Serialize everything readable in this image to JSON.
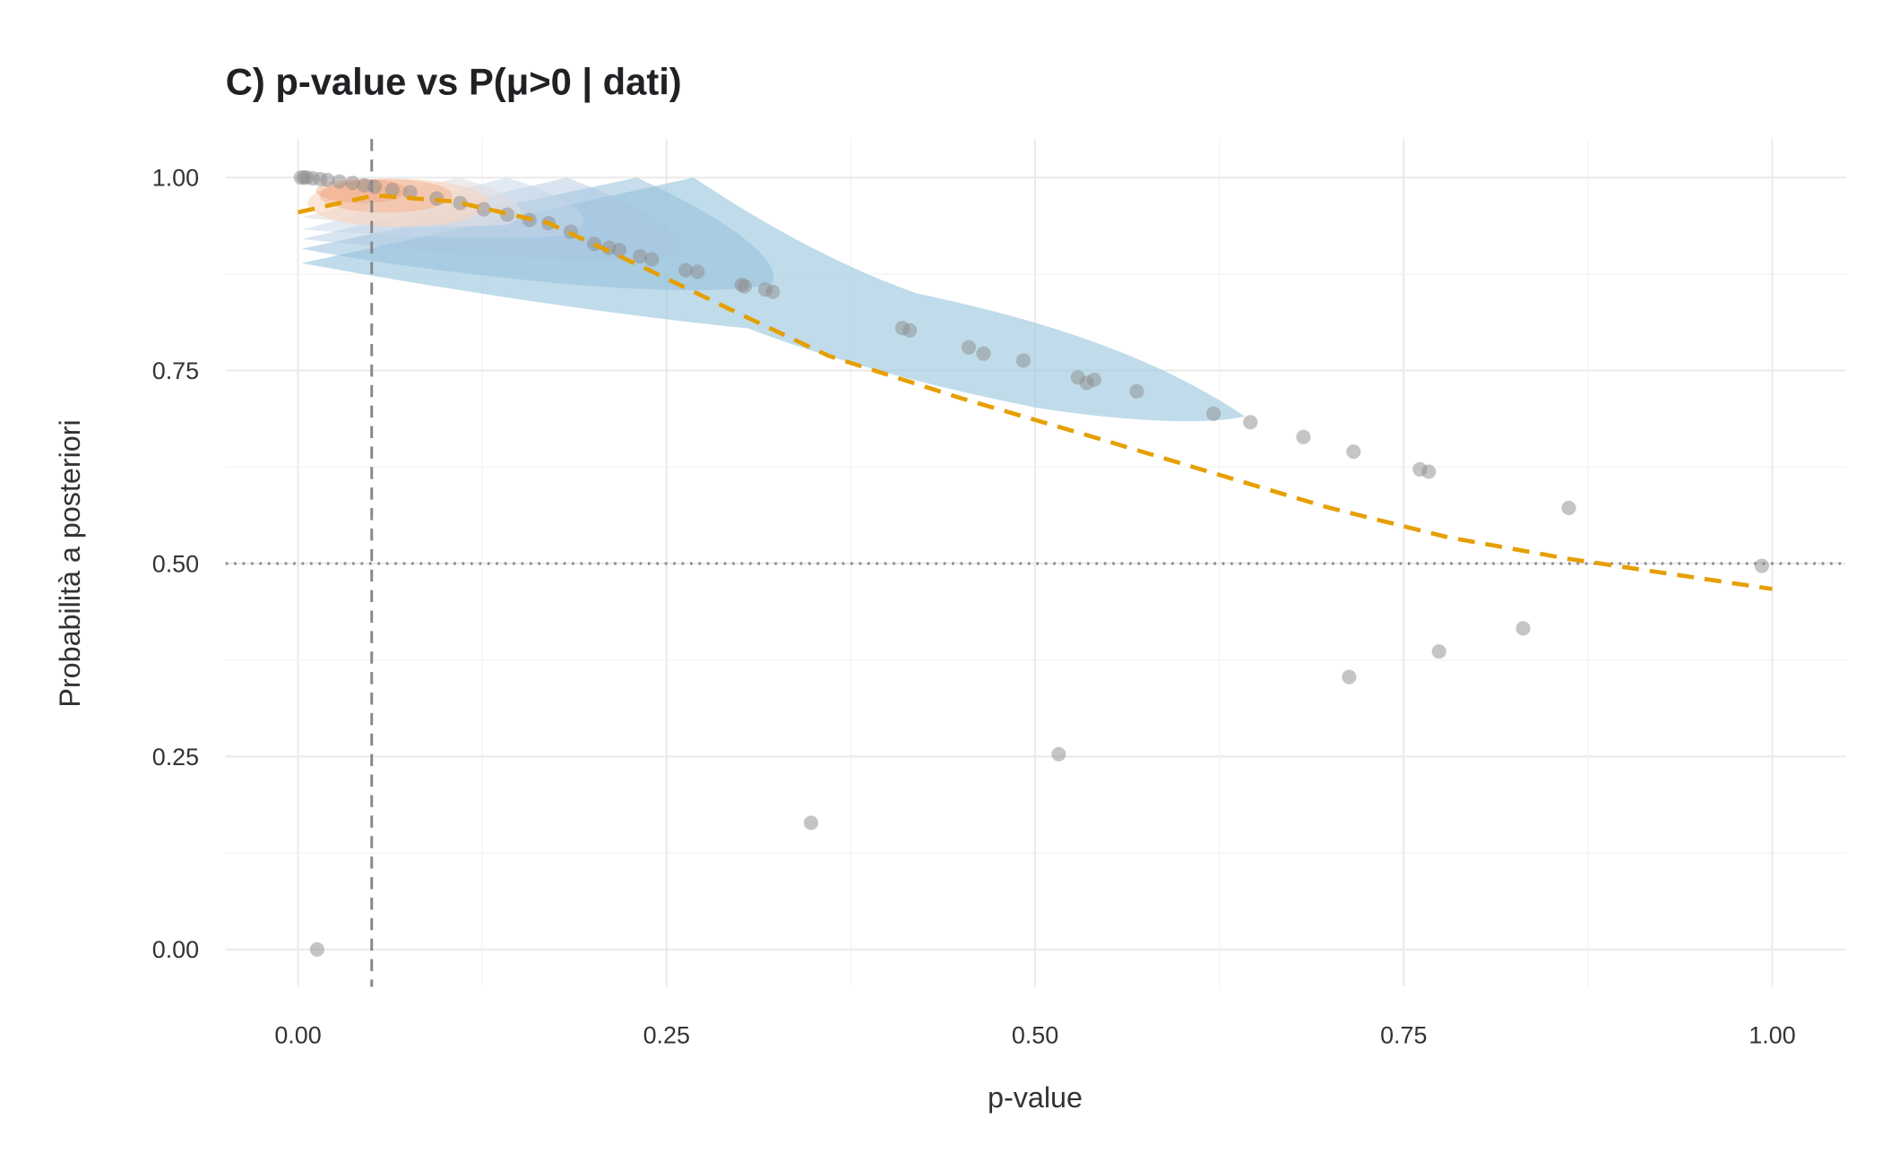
{
  "chart_data": {
    "type": "scatter",
    "title": "C) p-value vs P(μ>0 | dati)",
    "xlabel": "p-value",
    "ylabel": "Probabilità a posteriori",
    "xlim": [
      -0.05,
      1.05
    ],
    "ylim": [
      -0.05,
      1.05
    ],
    "grid": true,
    "x_ticks": [
      "0.00",
      "0.25",
      "0.50",
      "0.75",
      "1.00"
    ],
    "y_ticks": [
      "0.00",
      "0.25",
      "0.50",
      "0.75",
      "1.00"
    ],
    "x_tick_values": [
      0,
      0.25,
      0.5,
      0.75,
      1
    ],
    "y_tick_values": [
      0,
      0.25,
      0.5,
      0.75,
      1
    ],
    "reference_lines": {
      "vertical_p": 0.05,
      "horizontal_prob": 0.5
    },
    "points": [
      [
        0.002,
        1.0
      ],
      [
        0.004,
        1.0
      ],
      [
        0.006,
        1.0
      ],
      [
        0.01,
        0.999
      ],
      [
        0.015,
        0.998
      ],
      [
        0.02,
        0.997
      ],
      [
        0.028,
        0.995
      ],
      [
        0.037,
        0.993
      ],
      [
        0.045,
        0.99
      ],
      [
        0.052,
        0.988
      ],
      [
        0.064,
        0.984
      ],
      [
        0.076,
        0.981
      ],
      [
        0.094,
        0.973
      ],
      [
        0.11,
        0.967
      ],
      [
        0.126,
        0.959
      ],
      [
        0.142,
        0.952
      ],
      [
        0.157,
        0.945
      ],
      [
        0.17,
        0.941
      ],
      [
        0.185,
        0.93
      ],
      [
        0.201,
        0.914
      ],
      [
        0.211,
        0.909
      ],
      [
        0.218,
        0.906
      ],
      [
        0.232,
        0.898
      ],
      [
        0.24,
        0.894
      ],
      [
        0.263,
        0.88
      ],
      [
        0.271,
        0.878
      ],
      [
        0.301,
        0.861
      ],
      [
        0.303,
        0.859
      ],
      [
        0.317,
        0.855
      ],
      [
        0.322,
        0.852
      ],
      [
        0.41,
        0.805
      ],
      [
        0.415,
        0.802
      ],
      [
        0.455,
        0.78
      ],
      [
        0.465,
        0.772
      ],
      [
        0.492,
        0.763
      ],
      [
        0.529,
        0.741
      ],
      [
        0.535,
        0.734
      ],
      [
        0.54,
        0.738
      ],
      [
        0.569,
        0.723
      ],
      [
        0.621,
        0.694
      ],
      [
        0.646,
        0.683
      ],
      [
        0.682,
        0.664
      ],
      [
        0.716,
        0.645
      ],
      [
        0.761,
        0.622
      ],
      [
        0.767,
        0.619
      ],
      [
        0.862,
        0.572
      ],
      [
        0.993,
        0.497
      ],
      [
        0.013,
        0.0
      ],
      [
        0.348,
        0.164
      ],
      [
        0.516,
        0.253
      ],
      [
        0.713,
        0.353
      ],
      [
        0.774,
        0.386
      ],
      [
        0.831,
        0.416
      ]
    ],
    "trend": {
      "style": "dashed",
      "p": [
        0,
        0.052,
        0.106,
        0.17,
        0.235,
        0.3,
        0.36,
        0.45,
        0.534,
        0.616,
        0.698,
        0.78,
        0.862,
        1.0
      ],
      "prob": [
        0.955,
        0.977,
        0.969,
        0.941,
        0.883,
        0.823,
        0.769,
        0.714,
        0.667,
        0.62,
        0.573,
        0.534,
        0.506,
        0.467
      ]
    },
    "colors": {
      "points": "#8c8c8c",
      "trend": "#e69f00",
      "density_low": "#9ecae1",
      "density_high": "#f4a582",
      "grid": "#ebebeb",
      "refline": "#888888"
    }
  }
}
